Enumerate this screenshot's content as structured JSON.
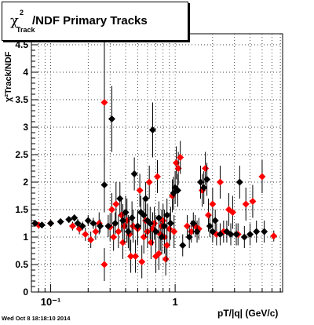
{
  "title": {
    "chi": "χ",
    "sup": "2",
    "sub": "Track",
    "rest": "/NDF  Primary Tracks"
  },
  "footer": {
    "timestamp": "Wed Oct  8 18:18:10 2014"
  },
  "colors": {
    "series_red": "#ff0000",
    "series_black": "#000000"
  },
  "chart_data": {
    "type": "scatter",
    "xlabel": "pT/|q| (GeV/c)",
    "ylabel": "χ²Track/NDF",
    "xscale": "log",
    "xlim": [
      0.07,
      7.3
    ],
    "ylim": [
      0,
      4.7
    ],
    "grid": true,
    "x_ticks": [
      "10⁻¹",
      "1"
    ],
    "y_ticks": [
      "0",
      "0.5",
      "1",
      "1.5",
      "2",
      "2.5",
      "3",
      "3.5",
      "4",
      "4.5"
    ],
    "series": [
      {
        "color": "#ff0000",
        "points": [
          {
            "x": 0.08,
            "y": 1.22,
            "e": 0.05
          },
          {
            "x": 0.1,
            "y": 1.25,
            "e": 0.06
          },
          {
            "x": 0.15,
            "y": 1.2,
            "e": 0.08
          },
          {
            "x": 0.17,
            "y": 1.15,
            "e": 0.1
          },
          {
            "x": 0.19,
            "y": 1.05,
            "e": 0.12
          },
          {
            "x": 0.21,
            "y": 0.95,
            "e": 0.15
          },
          {
            "x": 0.23,
            "y": 1.1,
            "e": 0.15
          },
          {
            "x": 0.245,
            "y": 1.25,
            "e": 0.2
          },
          {
            "x": 0.27,
            "y": 0.5,
            "e": 0.3
          },
          {
            "x": 0.27,
            "y": 3.45,
            "e": 1.1
          },
          {
            "x": 0.3,
            "y": 1.18,
            "e": 0.25
          },
          {
            "x": 0.31,
            "y": 1.5,
            "e": 0.3
          },
          {
            "x": 0.32,
            "y": 1.0,
            "e": 0.25
          },
          {
            "x": 0.335,
            "y": 1.6,
            "e": 0.4
          },
          {
            "x": 0.35,
            "y": 1.1,
            "e": 0.3
          },
          {
            "x": 0.37,
            "y": 1.4,
            "e": 0.3
          },
          {
            "x": 0.38,
            "y": 0.9,
            "e": 0.3
          },
          {
            "x": 0.39,
            "y": 1.2,
            "e": 0.3
          },
          {
            "x": 0.41,
            "y": 1.3,
            "e": 0.4
          },
          {
            "x": 0.43,
            "y": 1.05,
            "e": 0.3
          },
          {
            "x": 0.44,
            "y": 0.65,
            "e": 0.3
          },
          {
            "x": 0.46,
            "y": 1.2,
            "e": 0.3
          },
          {
            "x": 0.48,
            "y": 0.65,
            "e": 0.3
          },
          {
            "x": 0.5,
            "y": 1.15,
            "e": 0.3
          },
          {
            "x": 0.52,
            "y": 1.85,
            "e": 0.3
          },
          {
            "x": 0.54,
            "y": 0.55,
            "e": 0.3
          },
          {
            "x": 0.56,
            "y": 1.0,
            "e": 0.3
          },
          {
            "x": 0.58,
            "y": 1.3,
            "e": 0.3
          },
          {
            "x": 0.6,
            "y": 1.1,
            "e": 0.3
          },
          {
            "x": 0.62,
            "y": 2.0,
            "e": 0.3
          },
          {
            "x": 0.64,
            "y": 0.9,
            "e": 0.3
          },
          {
            "x": 0.66,
            "y": 1.15,
            "e": 0.3
          },
          {
            "x": 0.68,
            "y": 1.25,
            "e": 0.3
          },
          {
            "x": 0.7,
            "y": 0.65,
            "e": 0.3
          },
          {
            "x": 0.72,
            "y": 2.1,
            "e": 0.3
          },
          {
            "x": 0.74,
            "y": 0.7,
            "e": 0.3
          },
          {
            "x": 0.76,
            "y": 1.05,
            "e": 0.3
          },
          {
            "x": 0.78,
            "y": 1.2,
            "e": 0.3
          },
          {
            "x": 0.8,
            "y": 1.3,
            "e": 0.3
          },
          {
            "x": 0.82,
            "y": 1.0,
            "e": 0.3
          },
          {
            "x": 0.84,
            "y": 0.6,
            "e": 0.3
          },
          {
            "x": 0.86,
            "y": 0.85,
            "e": 0.3
          },
          {
            "x": 0.9,
            "y": 1.15,
            "e": 0.3
          },
          {
            "x": 0.95,
            "y": 1.75,
            "e": 0.3
          },
          {
            "x": 0.98,
            "y": 1.1,
            "e": 0.3
          },
          {
            "x": 1.02,
            "y": 2.35,
            "e": 0.3
          },
          {
            "x": 1.06,
            "y": 2.25,
            "e": 0.3
          },
          {
            "x": 1.1,
            "y": 2.45,
            "e": 0.3
          },
          {
            "x": 1.25,
            "y": 1.2,
            "e": 0.2
          },
          {
            "x": 1.35,
            "y": 1.1,
            "e": 0.2
          },
          {
            "x": 1.45,
            "y": 1.2,
            "e": 0.2
          },
          {
            "x": 1.55,
            "y": 1.15,
            "e": 0.2
          },
          {
            "x": 1.65,
            "y": 1.85,
            "e": 0.3
          },
          {
            "x": 1.75,
            "y": 2.25,
            "e": 0.3
          },
          {
            "x": 1.85,
            "y": 1.4,
            "e": 0.3
          },
          {
            "x": 2.0,
            "y": 1.6,
            "e": 0.3
          },
          {
            "x": 2.15,
            "y": 1.05,
            "e": 0.2
          },
          {
            "x": 2.3,
            "y": 2.0,
            "e": 0.3
          },
          {
            "x": 2.45,
            "y": 1.1,
            "e": 0.2
          },
          {
            "x": 2.7,
            "y": 1.5,
            "e": 0.3
          },
          {
            "x": 2.9,
            "y": 1.45,
            "e": 0.3
          },
          {
            "x": 3.2,
            "y": 1.05,
            "e": 0.2
          },
          {
            "x": 3.7,
            "y": 1.6,
            "e": 0.3
          },
          {
            "x": 4.2,
            "y": 1.65,
            "e": 0.3
          },
          {
            "x": 5.0,
            "y": 2.1,
            "e": 0.3
          },
          {
            "x": 6.2,
            "y": 1.02,
            "e": 0.1
          }
        ]
      },
      {
        "color": "#000000",
        "points": [
          {
            "x": 0.075,
            "y": 1.25,
            "e": 0.05
          },
          {
            "x": 0.085,
            "y": 1.22,
            "e": 0.05
          },
          {
            "x": 0.1,
            "y": 1.25,
            "e": 0.05
          },
          {
            "x": 0.12,
            "y": 1.28,
            "e": 0.05
          },
          {
            "x": 0.14,
            "y": 1.32,
            "e": 0.06
          },
          {
            "x": 0.155,
            "y": 1.35,
            "e": 0.06
          },
          {
            "x": 0.165,
            "y": 1.25,
            "e": 0.08
          },
          {
            "x": 0.18,
            "y": 1.2,
            "e": 0.08
          },
          {
            "x": 0.2,
            "y": 1.3,
            "e": 0.1
          },
          {
            "x": 0.22,
            "y": 1.25,
            "e": 0.1
          },
          {
            "x": 0.25,
            "y": 1.2,
            "e": 0.12
          },
          {
            "x": 0.27,
            "y": 1.95,
            "e": 0.5
          },
          {
            "x": 0.29,
            "y": 1.2,
            "e": 0.2
          },
          {
            "x": 0.31,
            "y": 3.15,
            "e": 0.6
          },
          {
            "x": 0.33,
            "y": 1.25,
            "e": 0.2
          },
          {
            "x": 0.36,
            "y": 1.7,
            "e": 0.3
          },
          {
            "x": 0.38,
            "y": 1.3,
            "e": 0.3
          },
          {
            "x": 0.4,
            "y": 1.45,
            "e": 0.3
          },
          {
            "x": 0.42,
            "y": 1.1,
            "e": 0.3
          },
          {
            "x": 0.45,
            "y": 1.35,
            "e": 0.3
          },
          {
            "x": 0.47,
            "y": 2.15,
            "e": 0.3
          },
          {
            "x": 0.5,
            "y": 1.2,
            "e": 0.3
          },
          {
            "x": 0.53,
            "y": 1.45,
            "e": 0.3
          },
          {
            "x": 0.56,
            "y": 1.4,
            "e": 0.3
          },
          {
            "x": 0.58,
            "y": 1.7,
            "e": 0.3
          },
          {
            "x": 0.6,
            "y": 1.3,
            "e": 0.3
          },
          {
            "x": 0.63,
            "y": 1.25,
            "e": 0.3
          },
          {
            "x": 0.66,
            "y": 2.95,
            "e": 0.5
          },
          {
            "x": 0.7,
            "y": 1.1,
            "e": 0.3
          },
          {
            "x": 0.74,
            "y": 1.35,
            "e": 0.3
          },
          {
            "x": 0.78,
            "y": 1.0,
            "e": 0.3
          },
          {
            "x": 0.82,
            "y": 1.2,
            "e": 0.3
          },
          {
            "x": 0.86,
            "y": 1.4,
            "e": 0.3
          },
          {
            "x": 0.92,
            "y": 1.25,
            "e": 0.3
          },
          {
            "x": 0.97,
            "y": 1.8,
            "e": 0.3
          },
          {
            "x": 1.0,
            "y": 1.9,
            "e": 0.3
          },
          {
            "x": 1.05,
            "y": 1.85,
            "e": 0.3
          },
          {
            "x": 1.15,
            "y": 0.85,
            "e": 0.2
          },
          {
            "x": 1.3,
            "y": 1.0,
            "e": 0.2
          },
          {
            "x": 1.4,
            "y": 1.25,
            "e": 0.2
          },
          {
            "x": 1.5,
            "y": 1.1,
            "e": 0.2
          },
          {
            "x": 1.6,
            "y": 2.0,
            "e": 0.3
          },
          {
            "x": 1.7,
            "y": 1.9,
            "e": 0.3
          },
          {
            "x": 1.8,
            "y": 2.05,
            "e": 0.3
          },
          {
            "x": 1.9,
            "y": 1.2,
            "e": 0.2
          },
          {
            "x": 2.0,
            "y": 1.1,
            "e": 0.2
          },
          {
            "x": 2.1,
            "y": 1.3,
            "e": 0.2
          },
          {
            "x": 2.3,
            "y": 1.05,
            "e": 0.2
          },
          {
            "x": 2.6,
            "y": 1.1,
            "e": 0.2
          },
          {
            "x": 2.8,
            "y": 1.05,
            "e": 0.2
          },
          {
            "x": 3.1,
            "y": 1.05,
            "e": 0.2
          },
          {
            "x": 3.3,
            "y": 2.0,
            "e": 0.3
          },
          {
            "x": 3.6,
            "y": 1.0,
            "e": 0.2
          },
          {
            "x": 4.0,
            "y": 1.05,
            "e": 0.2
          },
          {
            "x": 4.5,
            "y": 1.1,
            "e": 0.2
          },
          {
            "x": 5.2,
            "y": 1.1,
            "e": 0.2
          }
        ]
      }
    ]
  }
}
